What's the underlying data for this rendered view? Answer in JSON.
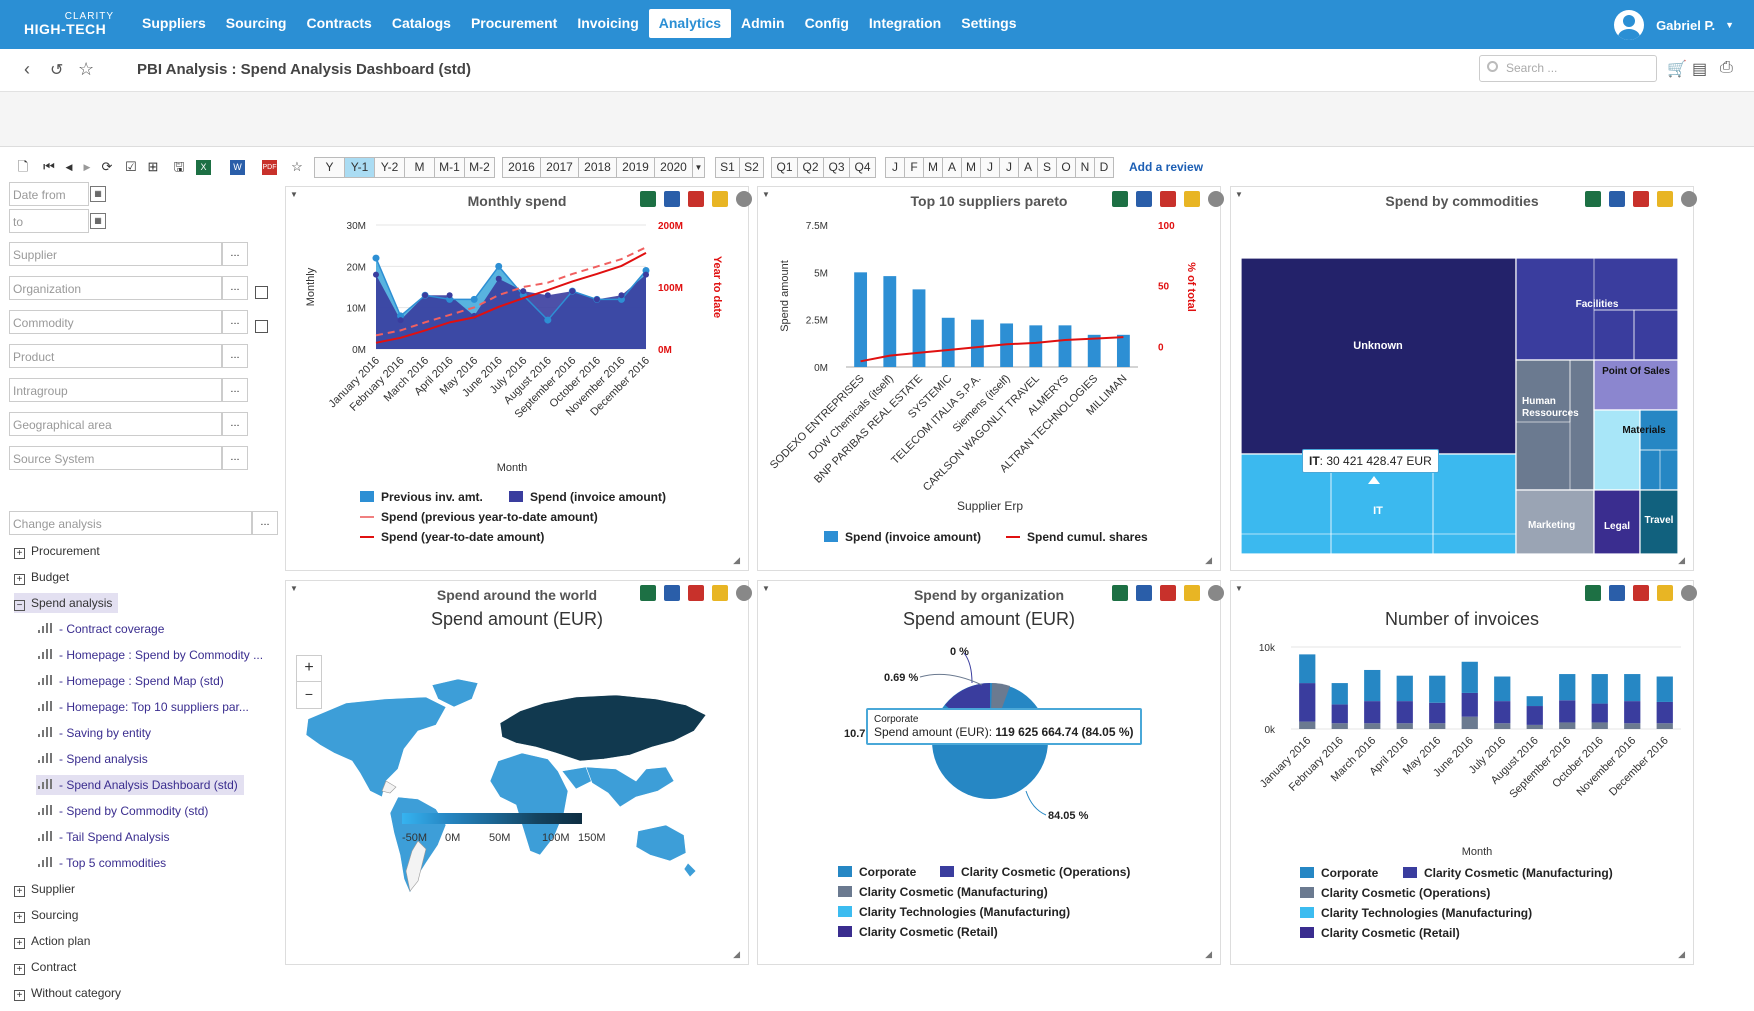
{
  "app": {
    "logo_top": "CLARITY",
    "logo_bottom": "HIGH-TECH"
  },
  "menu": [
    "Suppliers",
    "Sourcing",
    "Contracts",
    "Catalogs",
    "Procurement",
    "Invoicing",
    "Analytics",
    "Admin",
    "Config",
    "Integration",
    "Settings"
  ],
  "user": {
    "name": "Gabriel P."
  },
  "page": {
    "title": "PBI Analysis : Spend Analysis Dashboard (std)"
  },
  "search": {
    "placeholder": "Search ..."
  },
  "periods": [
    "Y",
    "Y-1",
    "Y-2",
    "M",
    "M-1",
    "M-2"
  ],
  "years": [
    "2016",
    "2017",
    "2018",
    "2019",
    "2020"
  ],
  "semesters": [
    "S1",
    "S2"
  ],
  "quarters": [
    "Q1",
    "Q2",
    "Q3",
    "Q4"
  ],
  "months": [
    "J",
    "F",
    "M",
    "A",
    "M",
    "J",
    "J",
    "A",
    "S",
    "O",
    "N",
    "D"
  ],
  "add_review": "Add a review",
  "filters": {
    "date_from": "Date from",
    "to": "to",
    "supplier": "Supplier",
    "organization": "Organization",
    "commodity": "Commodity",
    "product": "Product",
    "intragroup": "Intragroup",
    "geo": "Geographical area",
    "source": "Source System",
    "change": "Change analysis",
    "more": "..."
  },
  "tree": {
    "top": [
      "Procurement",
      "Budget",
      "Spend analysis"
    ],
    "sub": [
      "- Contract coverage",
      "- Homepage : Spend by Commodity ...",
      "- Homepage : Spend Map (std)",
      "- Homepage: Top 10 suppliers par...",
      "- Saving by entity",
      "- Spend analysis",
      "- Spend Analysis Dashboard (std)",
      "- Spend by Commodity (std)",
      "- Tail Spend Analysis",
      "- Top 5 commodities"
    ],
    "bottom": [
      "Supplier",
      "Sourcing",
      "Action plan",
      "Contract",
      "Without category"
    ]
  },
  "panels": {
    "monthly": {
      "title": "Monthly spend",
      "ylabel": "Monthly",
      "y2label": "Year to date",
      "xlabel": "Month",
      "yticks": [
        "30M",
        "20M",
        "10M",
        "0M"
      ],
      "y2ticks": [
        "200M",
        "100M",
        "0M"
      ],
      "legend": [
        "Previous inv. amt.",
        "Spend (invoice amount)",
        "Spend (previous year-to-date amount)",
        "Spend (year-to-date amount)"
      ]
    },
    "pareto": {
      "title": "Top 10 suppliers pareto",
      "ylabel": "Spend amount",
      "y2label": "% of total",
      "xlabel": "Supplier Erp",
      "yticks": [
        "7.5M",
        "5M",
        "2.5M",
        "0M"
      ],
      "y2ticks": [
        "100",
        "50",
        "0"
      ],
      "legend": [
        "Spend (invoice amount)",
        "Spend cumul. shares"
      ]
    },
    "commodities": {
      "title": "Spend by commodities",
      "tooltip_label": "IT",
      "tooltip_value": ": 30 421 428.47 EUR"
    },
    "world": {
      "title": "Spend around the world",
      "subtitle": "Spend amount (EUR)",
      "zoom_in": "+",
      "zoom_out": "−",
      "scale": [
        "-50M",
        "0M",
        "50M",
        "100M",
        "150M"
      ]
    },
    "org": {
      "title": "Spend by organization",
      "subtitle": "Spend amount (EUR)",
      "tooltip_name": "Corporate",
      "tooltip_label": "Spend amount (EUR):",
      "tooltip_value": "119 625 664.74 (84.05 %)",
      "labels": [
        "0 %",
        "0.69 %",
        "10.7 %",
        "84.05 %"
      ],
      "legend": [
        "Corporate",
        "Clarity Cosmetic (Operations)",
        "Clarity Cosmetic (Manufacturing)",
        "Clarity Technologies (Manufacturing)",
        "Clarity Cosmetic (Retail)"
      ]
    },
    "invoices": {
      "subtitle": "Number of invoices",
      "xlabel": "Month",
      "yticks": [
        "10k",
        "0k"
      ],
      "legend": [
        "Corporate",
        "Clarity Cosmetic (Manufacturing)",
        "Clarity Cosmetic (Operations)",
        "Clarity Technologies (Manufacturing)",
        "Clarity Cosmetic (Retail)"
      ]
    }
  },
  "chart_data": [
    {
      "type": "area",
      "title": "Monthly spend",
      "xlabel": "Month",
      "ylabel": "Monthly",
      "y2label": "Year to date",
      "categories": [
        "January 2016",
        "February 2016",
        "March 2016",
        "April 2016",
        "May 2016",
        "June 2016",
        "July 2016",
        "August 2016",
        "September 2016",
        "October 2016",
        "November 2016",
        "December 2016"
      ],
      "ylim": [
        0,
        30
      ],
      "y2lim": [
        0,
        200
      ],
      "unit": "M",
      "series": [
        {
          "name": "Previous inv. amt.",
          "values": [
            22,
            8,
            13,
            12,
            12,
            20,
            13,
            7,
            14,
            12,
            12,
            19
          ]
        },
        {
          "name": "Spend (invoice amount)",
          "values": [
            18,
            7,
            13,
            13,
            8,
            17,
            14,
            13,
            14,
            12,
            13,
            18
          ]
        },
        {
          "name": "Spend (previous year-to-date amount)",
          "axis": "y2",
          "values": [
            22,
            30,
            43,
            55,
            67,
            87,
            100,
            107,
            121,
            133,
            145,
            164
          ]
        },
        {
          "name": "Spend (year-to-date amount)",
          "axis": "y2",
          "values": [
            10,
            18,
            30,
            43,
            51,
            68,
            82,
            95,
            109,
            121,
            134,
            155
          ]
        }
      ],
      "colors": [
        "#3ba6d9",
        "#3a3d9e",
        "#e03030",
        "#e01010"
      ]
    },
    {
      "type": "bar",
      "title": "Top 10 suppliers pareto",
      "xlabel": "Supplier Erp",
      "ylabel": "Spend amount",
      "y2label": "% of total",
      "categories": [
        "SODEXO ENTREPRISES",
        "DOW Chemicals (itself)",
        "BNP PARIBAS REAL ESTATE",
        "SYSTEMIC",
        "TELECOM ITALIA S.P.A.",
        "Siemens (itself)",
        "CARLSON WAGONLIT TRAVEL",
        "ALMERYS",
        "ALTRAN TECHNOLOGIES",
        "MILLIMAN"
      ],
      "ylim": [
        0,
        7.5
      ],
      "y2lim": [
        0,
        100
      ],
      "series": [
        {
          "name": "Spend (invoice amount)",
          "values": [
            5.0,
            4.8,
            4.1,
            2.6,
            2.5,
            2.3,
            2.2,
            2.2,
            1.7,
            1.7
          ]
        },
        {
          "name": "Spend cumul. shares",
          "axis": "y2",
          "values": [
            4,
            8,
            10,
            12,
            14,
            16,
            17,
            19,
            20,
            21
          ]
        }
      ]
    },
    {
      "type": "treemap",
      "title": "Spend by commodities",
      "categories": [
        "Unknown",
        "IT",
        "Facilities",
        "Human Ressources",
        "Point Of Sales",
        "Materials",
        "Marketing",
        "Legal",
        "Travel"
      ]
    },
    {
      "type": "pie",
      "title": "Spend by organization",
      "categories": [
        "Corporate",
        "Clarity Cosmetic (Operations)",
        "Clarity Cosmetic (Manufacturing)",
        "Clarity Technologies (Manufacturing)",
        "Clarity Cosmetic (Retail)"
      ],
      "values": [
        84.05,
        10.7,
        0.69,
        4.5,
        0.06
      ]
    },
    {
      "type": "bar",
      "title": "Number of invoices",
      "xlabel": "Month",
      "ylim": [
        0,
        10
      ],
      "unit": "k",
      "stacked": true,
      "categories": [
        "January 2016",
        "February 2016",
        "March 2016",
        "April 2016",
        "May 2016",
        "June 2016",
        "July 2016",
        "August 2016",
        "September 2016",
        "October 2016",
        "November 2016",
        "December 2016"
      ],
      "series": [
        {
          "name": "Corporate",
          "values": [
            3.5,
            2.6,
            3.8,
            3.1,
            3.3,
            3.8,
            3.0,
            1.2,
            3.2,
            3.6,
            3.3,
            3.1
          ]
        },
        {
          "name": "Clarity Cosmetic (Manufacturing)",
          "values": [
            4.7,
            2.3,
            2.7,
            2.7,
            2.5,
            2.9,
            2.7,
            2.3,
            2.7,
            2.3,
            2.7,
            2.6
          ]
        },
        {
          "name": "Clarity Cosmetic (Operations)",
          "values": [
            0.9,
            0.7,
            0.7,
            0.7,
            0.7,
            1.5,
            0.7,
            0.5,
            0.8,
            0.8,
            0.7,
            0.7
          ]
        }
      ]
    }
  ]
}
